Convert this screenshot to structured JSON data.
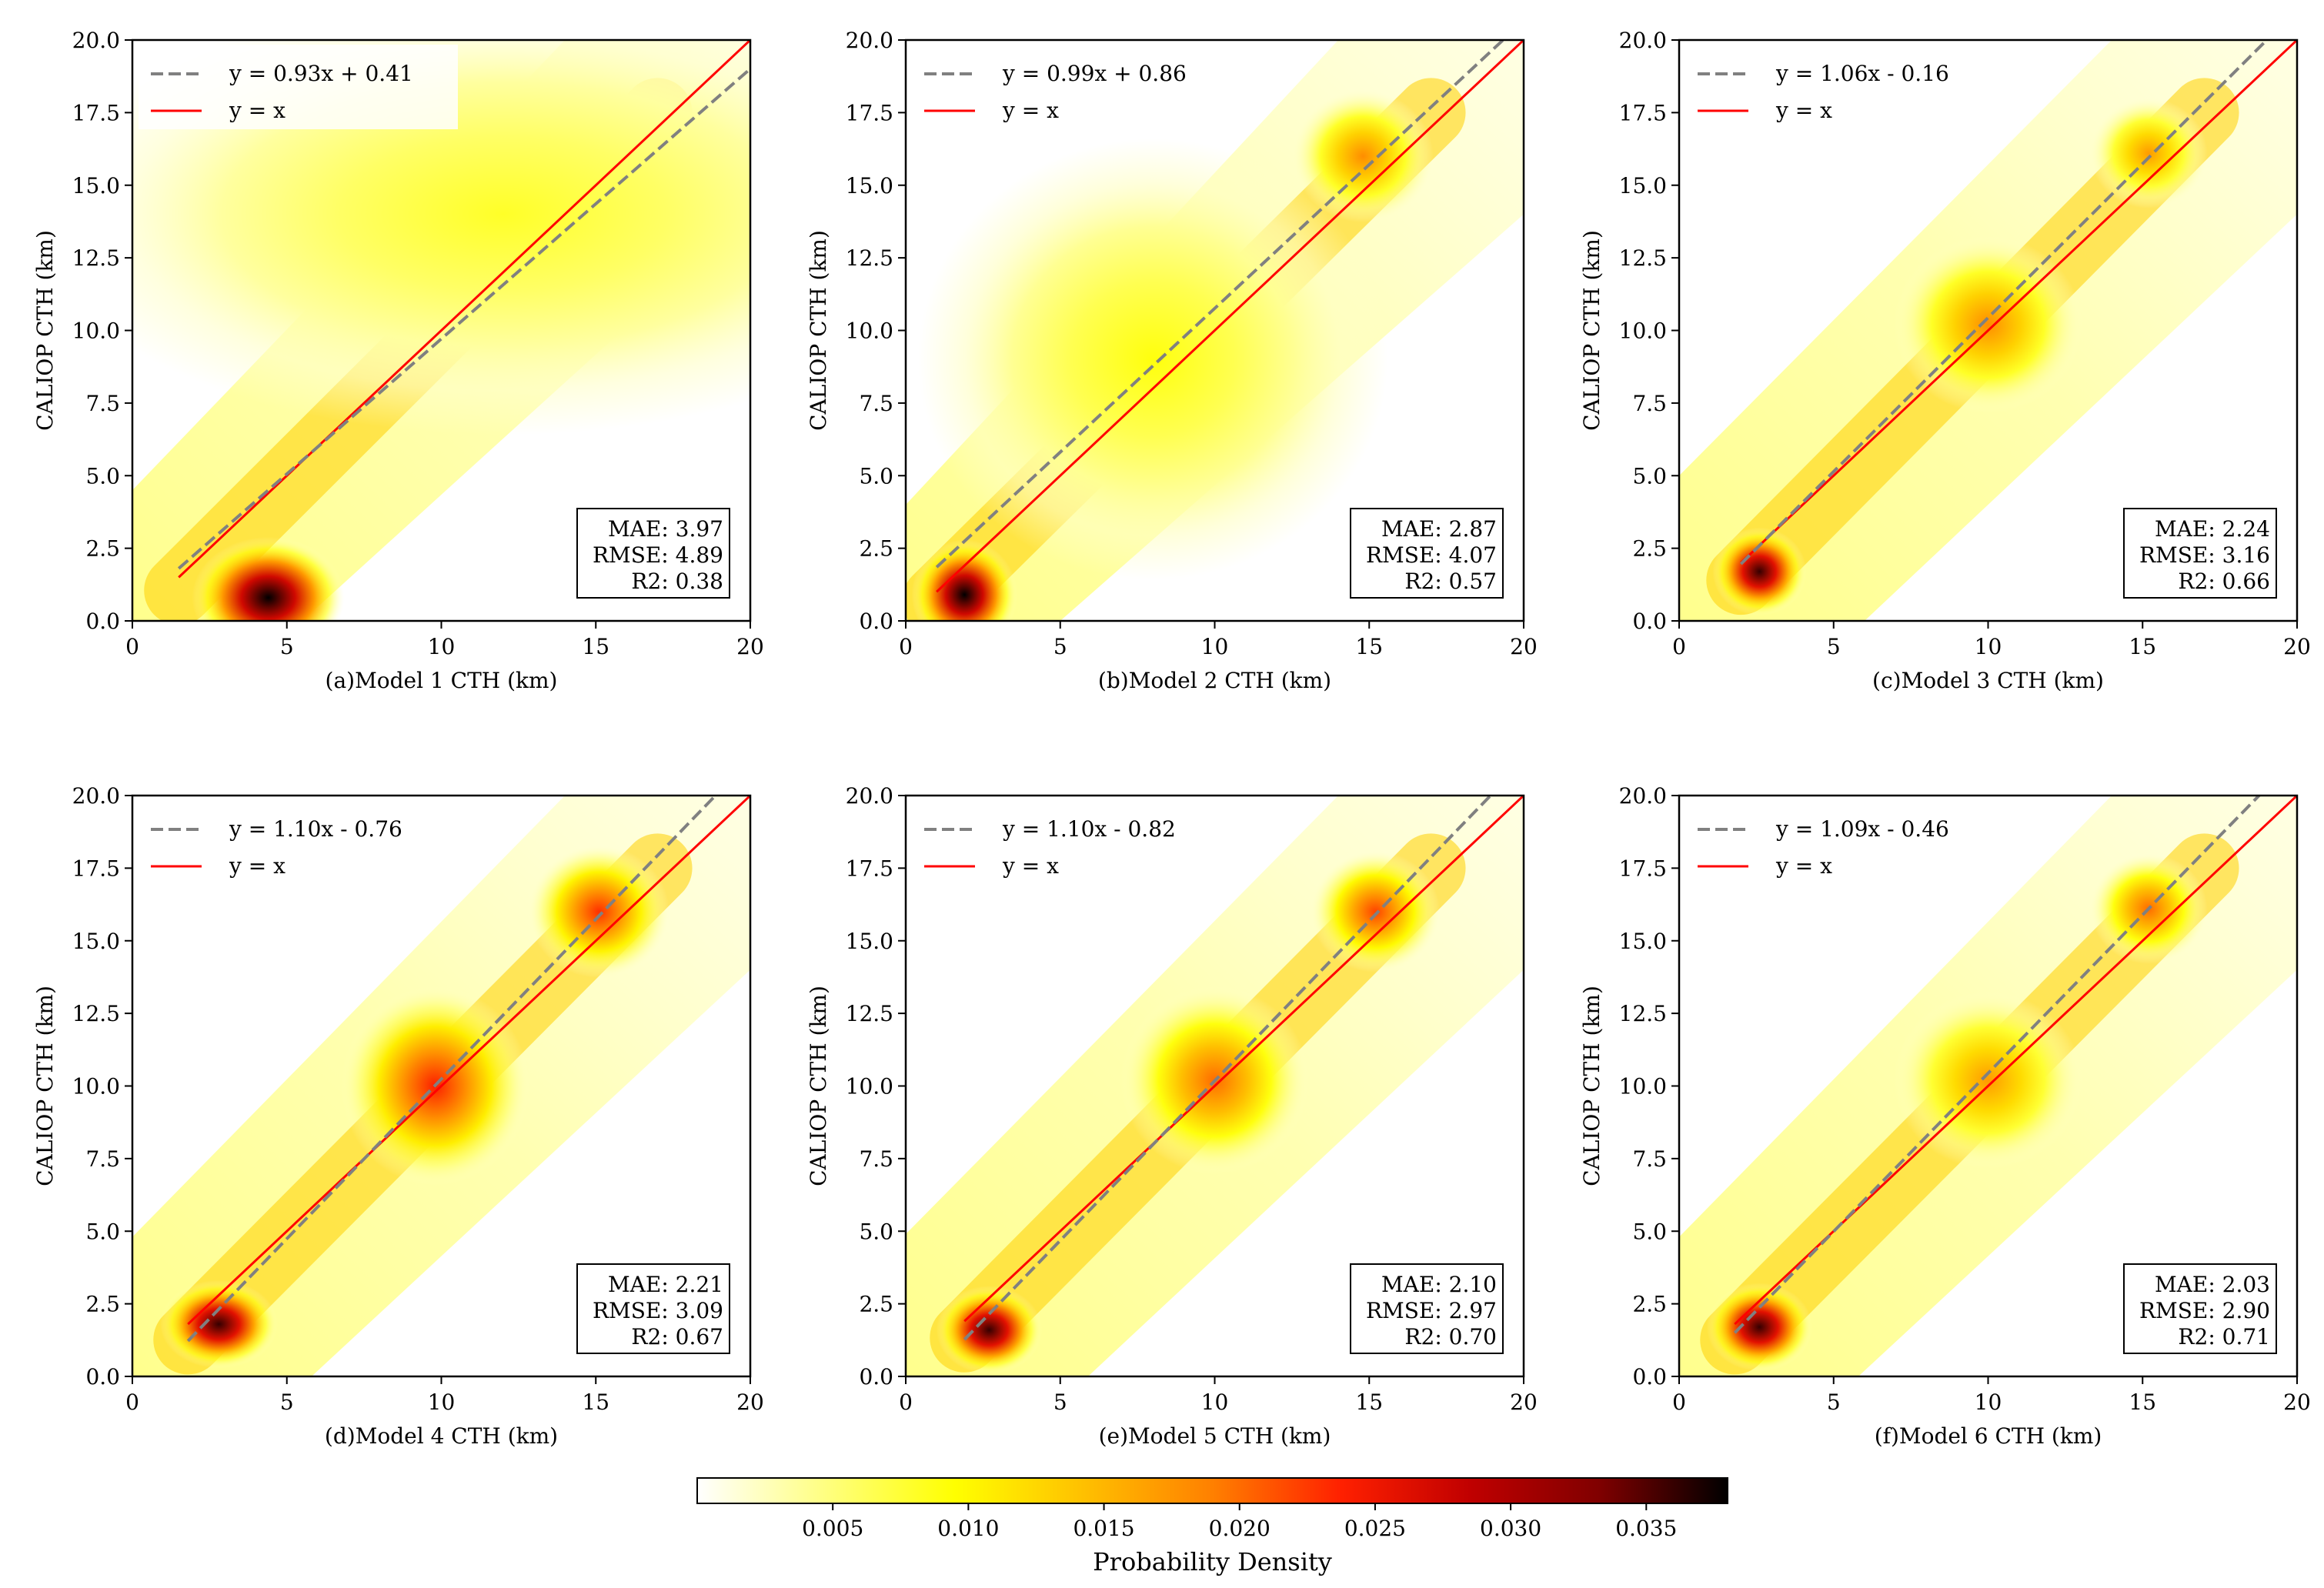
{
  "chart_data": [
    {
      "type": "scatter",
      "panel": "a",
      "title": "",
      "xlabel": "(a)Model 1 CTH (km)",
      "ylabel": "CALIOP CTH (km)",
      "xlim": [
        0,
        20
      ],
      "ylim": [
        0,
        20
      ],
      "xticks": [
        "0",
        "5",
        "10",
        "15",
        "20"
      ],
      "yticks": [
        "0.0",
        "2.5",
        "5.0",
        "7.5",
        "10.0",
        "12.5",
        "15.0",
        "17.5",
        "20.0"
      ],
      "fit": {
        "slope": 0.93,
        "intercept": 0.41,
        "label": "y = 0.93x + 0.41",
        "x_range": [
          1.5,
          20
        ]
      },
      "identity": {
        "label": "y = x",
        "x_range": [
          1.5,
          20
        ]
      },
      "stats": {
        "mae": "MAE: 3.97",
        "rmse": "RMSE: 4.89",
        "r2": "R2: 0.38"
      },
      "density_peaks": [
        {
          "x": 4.4,
          "y": 0.8,
          "sx": 1.3,
          "sy": 1.1,
          "level": 0.038
        },
        {
          "x": 12,
          "y": 14,
          "sx": 8,
          "sy": 4,
          "level": 0.008
        }
      ]
    },
    {
      "type": "scatter",
      "panel": "b",
      "title": "",
      "xlabel": "(b)Model 2 CTH (km)",
      "ylabel": "CALIOP CTH (km)",
      "xlim": [
        0,
        20
      ],
      "ylim": [
        0,
        20
      ],
      "xticks": [
        "0",
        "5",
        "10",
        "15",
        "20"
      ],
      "yticks": [
        "0.0",
        "2.5",
        "5.0",
        "7.5",
        "10.0",
        "12.5",
        "15.0",
        "17.5",
        "20.0"
      ],
      "fit": {
        "slope": 0.99,
        "intercept": 0.86,
        "label": "y = 0.99x + 0.86",
        "x_range": [
          1,
          20
        ]
      },
      "identity": {
        "label": "y = x",
        "x_range": [
          1,
          20
        ]
      },
      "stats": {
        "mae": "MAE: 2.87",
        "rmse": "RMSE: 4.07",
        "r2": "R2: 0.57"
      },
      "density_peaks": [
        {
          "x": 1.9,
          "y": 0.9,
          "sx": 0.9,
          "sy": 1.0,
          "level": 0.038
        },
        {
          "x": 14.8,
          "y": 16,
          "sx": 1.2,
          "sy": 1.2,
          "level": 0.018
        },
        {
          "x": 8,
          "y": 9,
          "sx": 4,
          "sy": 4,
          "level": 0.009
        }
      ]
    },
    {
      "type": "scatter",
      "panel": "c",
      "title": "",
      "xlabel": "(c)Model 3 CTH (km)",
      "ylabel": "CALIOP CTH (km)",
      "xlim": [
        0,
        20
      ],
      "ylim": [
        0,
        20
      ],
      "xticks": [
        "0",
        "5",
        "10",
        "15",
        "20"
      ],
      "yticks": [
        "0.0",
        "2.5",
        "5.0",
        "7.5",
        "10.0",
        "12.5",
        "15.0",
        "17.5",
        "20.0"
      ],
      "fit": {
        "slope": 1.06,
        "intercept": -0.16,
        "label": "y = 1.06x - 0.16",
        "x_range": [
          2,
          20
        ]
      },
      "identity": {
        "label": "y = x",
        "x_range": [
          2,
          20
        ]
      },
      "stats": {
        "mae": "MAE: 2.24",
        "rmse": "RMSE: 3.16",
        "r2": "R2: 0.66"
      },
      "density_peaks": [
        {
          "x": 2.6,
          "y": 1.7,
          "sx": 0.8,
          "sy": 0.8,
          "level": 0.036
        },
        {
          "x": 10,
          "y": 10.2,
          "sx": 1.6,
          "sy": 1.6,
          "level": 0.018
        },
        {
          "x": 15.2,
          "y": 16.1,
          "sx": 1.0,
          "sy": 1.0,
          "level": 0.017
        }
      ]
    },
    {
      "type": "scatter",
      "panel": "d",
      "title": "",
      "xlabel": "(d)Model 4 CTH (km)",
      "ylabel": "CALIOP CTH (km)",
      "xlim": [
        0,
        20
      ],
      "ylim": [
        0,
        20
      ],
      "xticks": [
        "0",
        "5",
        "10",
        "15",
        "20"
      ],
      "yticks": [
        "0.0",
        "2.5",
        "5.0",
        "7.5",
        "10.0",
        "12.5",
        "15.0",
        "17.5",
        "20.0"
      ],
      "fit": {
        "slope": 1.1,
        "intercept": -0.76,
        "label": "y = 1.10x - 0.76",
        "x_range": [
          1.8,
          20
        ]
      },
      "identity": {
        "label": "y = x",
        "x_range": [
          1.8,
          20
        ]
      },
      "stats": {
        "mae": "MAE: 2.21",
        "rmse": "RMSE: 3.09",
        "r2": "R2: 0.67"
      },
      "density_peaks": [
        {
          "x": 2.8,
          "y": 1.8,
          "sx": 1.0,
          "sy": 0.8,
          "level": 0.036
        },
        {
          "x": 9.8,
          "y": 10,
          "sx": 1.6,
          "sy": 1.8,
          "level": 0.024
        },
        {
          "x": 15.1,
          "y": 16,
          "sx": 1.2,
          "sy": 1.2,
          "level": 0.023
        }
      ]
    },
    {
      "type": "scatter",
      "panel": "e",
      "title": "",
      "xlabel": "(e)Model 5 CTH (km)",
      "ylabel": "CALIOP CTH (km)",
      "xlim": [
        0,
        20
      ],
      "ylim": [
        0,
        20
      ],
      "xticks": [
        "0",
        "5",
        "10",
        "15",
        "20"
      ],
      "yticks": [
        "0.0",
        "2.5",
        "5.0",
        "7.5",
        "10.0",
        "12.5",
        "15.0",
        "17.5",
        "20.0"
      ],
      "fit": {
        "slope": 1.1,
        "intercept": -0.82,
        "label": "y = 1.10x - 0.82",
        "x_range": [
          1.9,
          20
        ]
      },
      "identity": {
        "label": "y = x",
        "x_range": [
          1.9,
          20
        ]
      },
      "stats": {
        "mae": "MAE: 2.10",
        "rmse": "RMSE: 2.97",
        "r2": "R2: 0.70"
      },
      "density_peaks": [
        {
          "x": 2.7,
          "y": 1.6,
          "sx": 0.9,
          "sy": 0.8,
          "level": 0.036
        },
        {
          "x": 10,
          "y": 10.2,
          "sx": 1.6,
          "sy": 1.7,
          "level": 0.02
        },
        {
          "x": 15.2,
          "y": 16,
          "sx": 1.1,
          "sy": 1.1,
          "level": 0.022
        }
      ]
    },
    {
      "type": "scatter",
      "panel": "f",
      "title": "",
      "xlabel": "(f)Model 6 CTH (km)",
      "ylabel": "CALIOP CTH (km)",
      "xlim": [
        0,
        20
      ],
      "ylim": [
        0,
        20
      ],
      "xticks": [
        "0",
        "5",
        "10",
        "15",
        "20"
      ],
      "yticks": [
        "0.0",
        "2.5",
        "5.0",
        "7.5",
        "10.0",
        "12.5",
        "15.0",
        "17.5",
        "20.0"
      ],
      "fit": {
        "slope": 1.09,
        "intercept": -0.46,
        "label": "y = 1.09x - 0.46",
        "x_range": [
          1.8,
          20
        ]
      },
      "identity": {
        "label": "y = x",
        "x_range": [
          1.8,
          20
        ]
      },
      "stats": {
        "mae": "MAE: 2.03",
        "rmse": "RMSE: 2.90",
        "r2": "R2: 0.71"
      },
      "density_peaks": [
        {
          "x": 2.6,
          "y": 1.7,
          "sx": 0.9,
          "sy": 0.8,
          "level": 0.036
        },
        {
          "x": 10,
          "y": 10.2,
          "sx": 1.6,
          "sy": 1.6,
          "level": 0.017
        },
        {
          "x": 15.2,
          "y": 16.1,
          "sx": 1.0,
          "sy": 1.0,
          "level": 0.02
        }
      ]
    }
  ],
  "colorbar": {
    "label": "Probability Density",
    "range": [
      0,
      0.038
    ],
    "ticks": [
      0.005,
      0.01,
      0.015,
      0.02,
      0.025,
      0.03,
      0.035
    ],
    "tick_labels": [
      "0.005",
      "0.010",
      "0.015",
      "0.020",
      "0.025",
      "0.030",
      "0.035"
    ],
    "colormap": [
      "#ffffff",
      "#ffff80",
      "#ffff00",
      "#ffc000",
      "#ff8000",
      "#ff2000",
      "#c00000",
      "#800000",
      "#000000"
    ]
  },
  "colors": {
    "fit_line": "#808080",
    "identity_line": "#ff0000"
  }
}
